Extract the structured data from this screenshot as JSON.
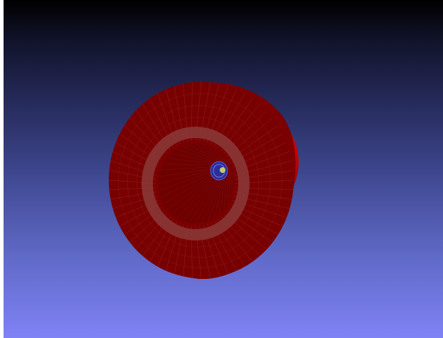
{
  "viewer": {
    "background_top": "#000000",
    "background_bottom": "#7f82f5"
  },
  "scene": {
    "mesh_color": "#7a0000",
    "mesh_highlight": "#c40000",
    "wire_color": "#b05050",
    "inner_core_color": "#2a2f9a",
    "marker_color": "#c8c870"
  }
}
